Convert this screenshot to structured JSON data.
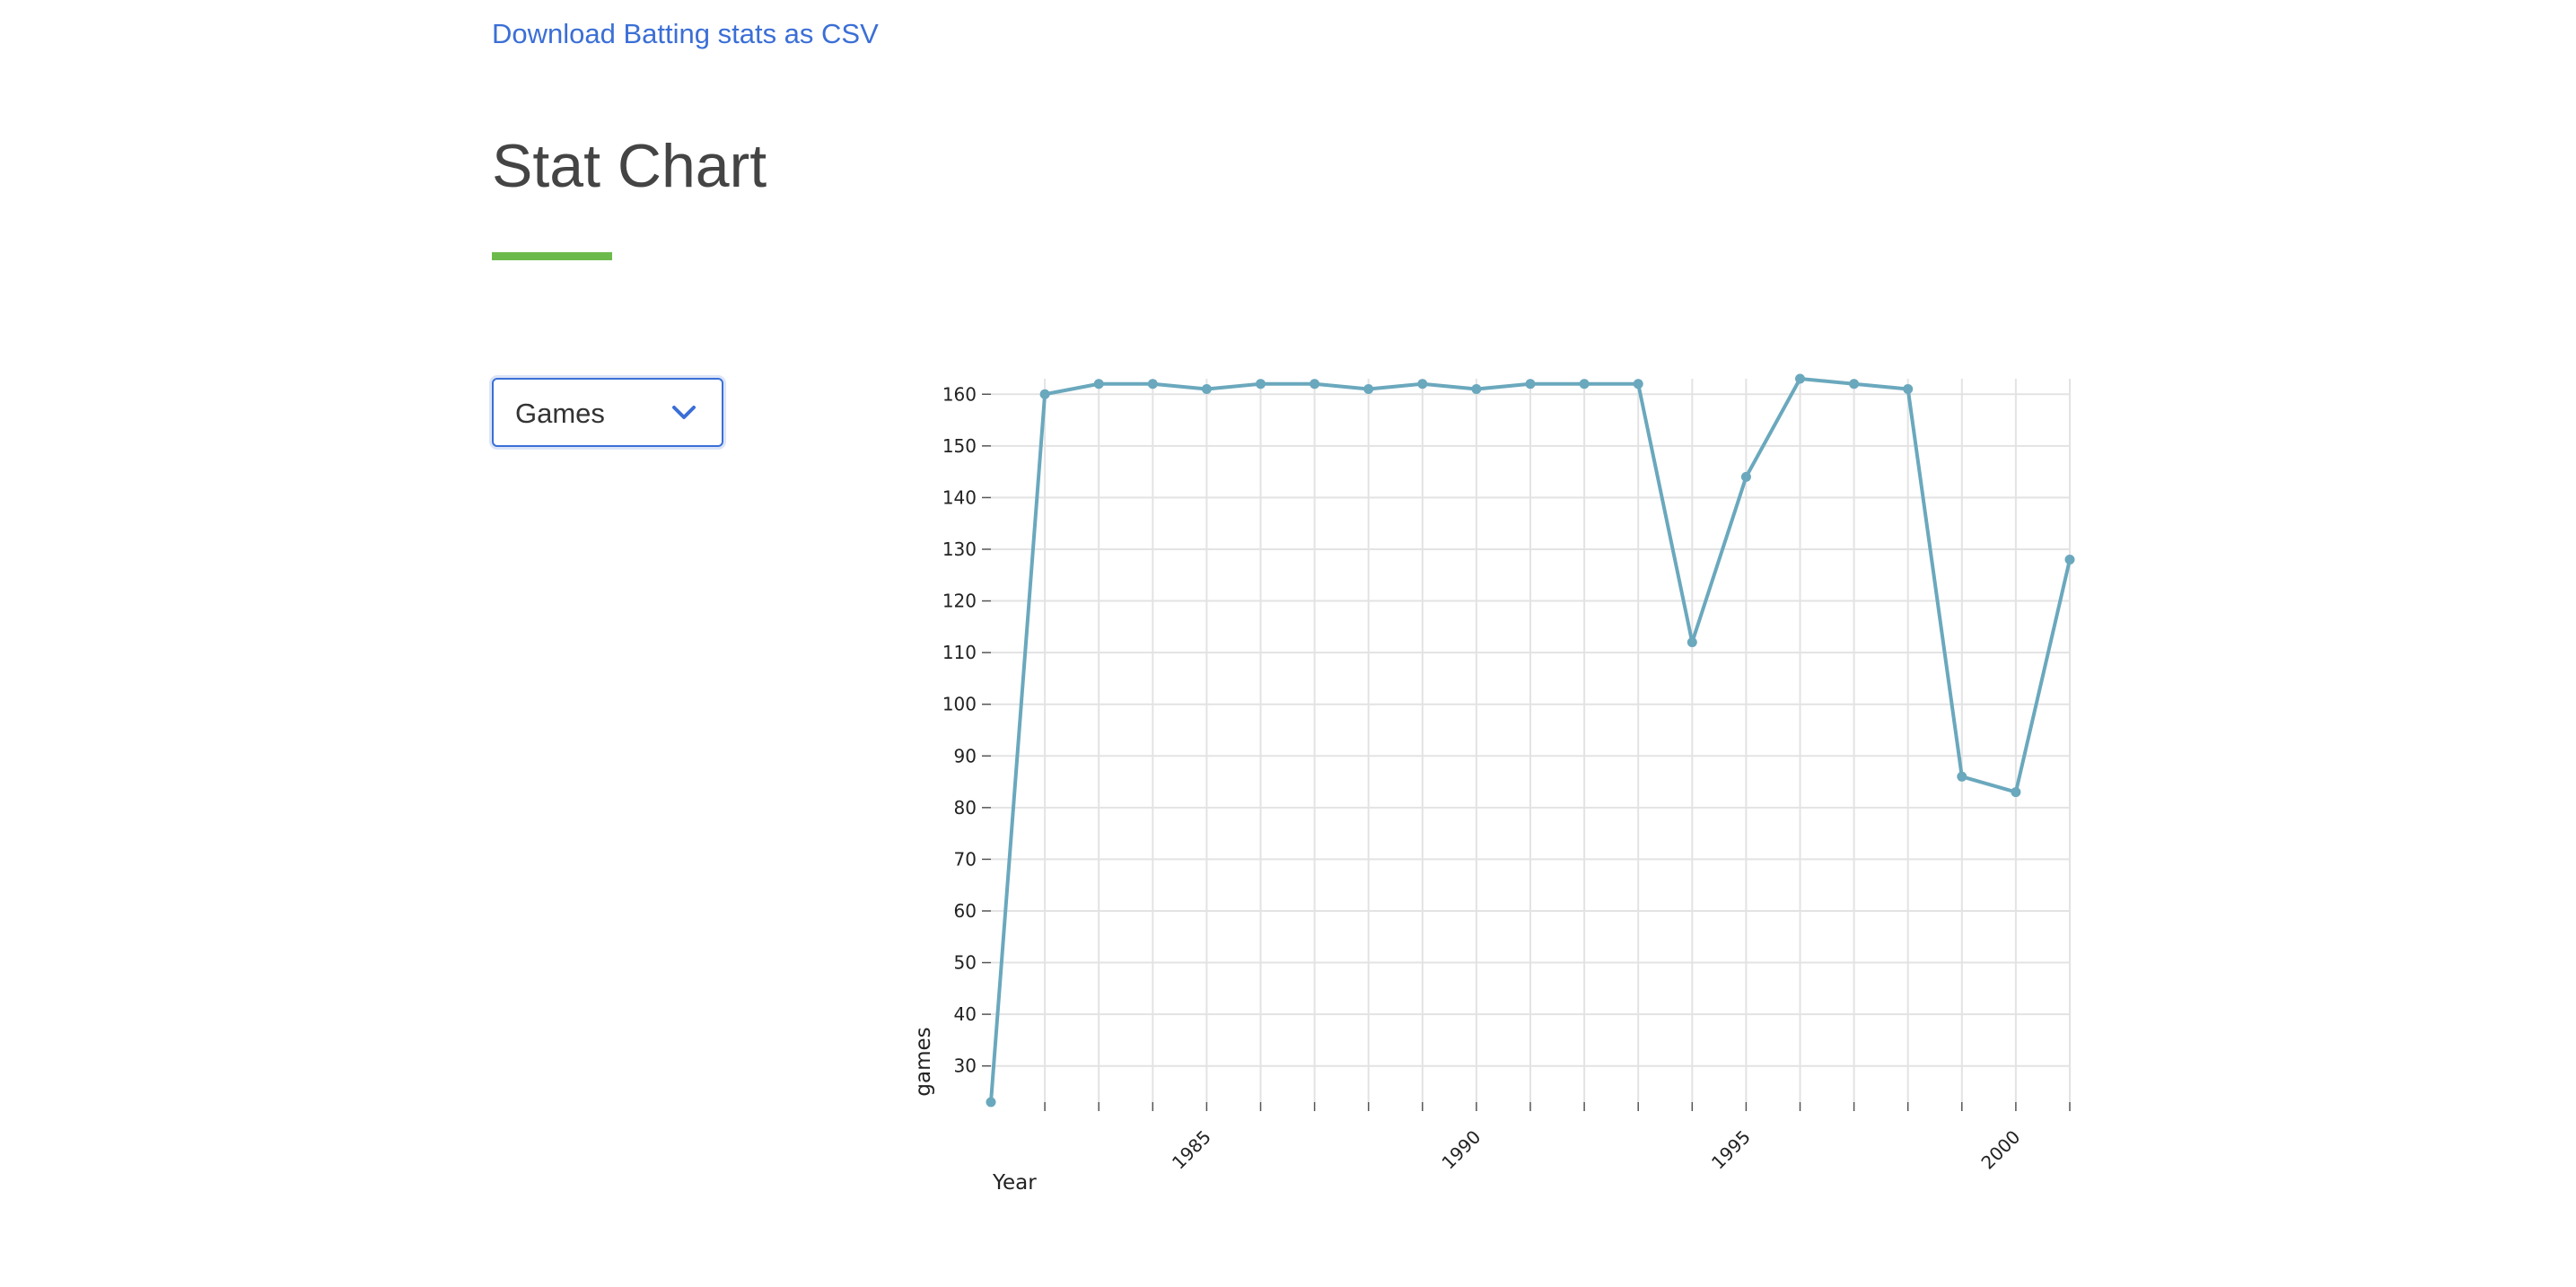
{
  "download_link": "Download Batting stats as CSV",
  "page_title": "Stat Chart",
  "accent_color": "#6cba4c",
  "link_color": "#3b6fd6",
  "line_color": "#6aa8bd",
  "stat_select": {
    "selected": "Games",
    "icon": "chevron-down-icon"
  },
  "chart_data": {
    "type": "line",
    "xlabel": "Year",
    "ylabel": "games",
    "x": [
      1981,
      1982,
      1983,
      1984,
      1985,
      1986,
      1987,
      1988,
      1989,
      1990,
      1991,
      1992,
      1993,
      1994,
      1995,
      1996,
      1997,
      1998,
      1999,
      2000,
      2001
    ],
    "series": [
      {
        "values": [
          23,
          160,
          162,
          162,
          161,
          162,
          162,
          161,
          162,
          161,
          162,
          162,
          162,
          112,
          144,
          163,
          162,
          161,
          86,
          83,
          128
        ]
      }
    ],
    "xlim": [
      1981,
      2001
    ],
    "ylim": [
      23,
      163
    ],
    "x_ticks": [
      1985,
      1990,
      1995,
      2000
    ],
    "y_ticks": [
      30,
      40,
      50,
      60,
      70,
      80,
      90,
      100,
      110,
      120,
      130,
      140,
      150,
      160
    ],
    "grid": true
  }
}
